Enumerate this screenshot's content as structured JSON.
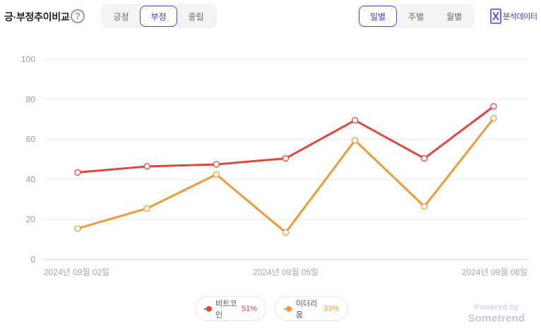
{
  "header": {
    "title": "긍·부정추이비교",
    "help_symbol": "?",
    "sentiment_tabs": [
      {
        "label": "긍정",
        "active": false
      },
      {
        "label": "부정",
        "active": true
      },
      {
        "label": "중립",
        "active": false
      }
    ],
    "period_tabs": [
      {
        "label": "일별",
        "active": true
      },
      {
        "label": "주별",
        "active": false
      },
      {
        "label": "월별",
        "active": false
      }
    ],
    "analysis_label": "분석데이터",
    "accent_color": "#5b3fd0"
  },
  "chart_data": {
    "type": "line",
    "x": [
      "2024-09-02",
      "2024-09-03",
      "2024-09-04",
      "2024-09-05",
      "2024-09-06",
      "2024-09-07",
      "2024-09-08"
    ],
    "x_tick_labels": [
      {
        "index": 0,
        "label": "2024년 09월 02일"
      },
      {
        "index": 3,
        "label": "2024년 09월 05일"
      },
      {
        "index": 6,
        "label": "2024년 09월 08일"
      }
    ],
    "series": [
      {
        "name": "비트코인",
        "share": "51%",
        "color": "#e0483e",
        "values": [
          43.5,
          46.5,
          47.5,
          50.5,
          69.5,
          50.5,
          76.5
        ]
      },
      {
        "name": "이더리움",
        "share": "33%",
        "color": "#ef9a3a",
        "values": [
          15.5,
          25.5,
          42.5,
          13.5,
          59.5,
          26.5,
          70.5
        ]
      }
    ],
    "ylim": [
      0,
      100
    ],
    "y_ticks": [
      0,
      20,
      40,
      60,
      80,
      100
    ],
    "grid": true,
    "legend_position": "bottom-center"
  },
  "footer": {
    "powered_label": "Powered by",
    "brand": "Sometrend"
  }
}
